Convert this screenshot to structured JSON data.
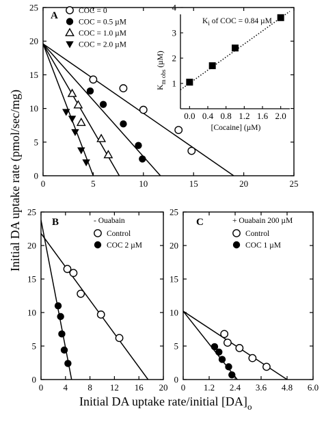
{
  "figure": {
    "ylabel": "Initial DA uptake rate (pmol/sec/mg)",
    "xlabel_main": "Initial DA uptake rate/initial [DA]",
    "xlabel_sub": "o"
  },
  "chart_data": [
    {
      "id": "A",
      "type": "scatter",
      "panel_label": "A",
      "xlim": [
        0,
        25
      ],
      "ylim": [
        0,
        25
      ],
      "xticks": [
        0,
        5,
        10,
        15,
        20,
        25
      ],
      "yticks": [
        0,
        5,
        10,
        15,
        20,
        25
      ],
      "series": [
        {
          "name": "COC = 0",
          "marker": "circle-open",
          "points": [
            [
              5.0,
              14.3
            ],
            [
              8.0,
              13.0
            ],
            [
              10.0,
              9.8
            ],
            [
              13.5,
              6.8
            ],
            [
              14.8,
              3.7
            ]
          ],
          "fit": [
            [
              0,
              19.6
            ],
            [
              19.0,
              0
            ]
          ]
        },
        {
          "name": "COC = 0.5 µM",
          "marker": "circle-filled",
          "points": [
            [
              4.7,
              12.6
            ],
            [
              6.0,
              10.6
            ],
            [
              8.0,
              7.7
            ],
            [
              9.5,
              4.5
            ],
            [
              9.9,
              2.5
            ]
          ],
          "fit": [
            [
              0,
              19.6
            ],
            [
              11.7,
              0
            ]
          ]
        },
        {
          "name": "COC = 1.0 µM",
          "marker": "triangle-up-open",
          "points": [
            [
              2.9,
              12.2
            ],
            [
              3.5,
              10.5
            ],
            [
              3.8,
              7.9
            ],
            [
              5.8,
              5.5
            ],
            [
              6.5,
              3.1
            ]
          ],
          "fit": [
            [
              0,
              19.6
            ],
            [
              7.6,
              0
            ]
          ]
        },
        {
          "name": "COC = 2.0 µM",
          "marker": "triangle-down-filled",
          "points": [
            [
              2.3,
              9.5
            ],
            [
              2.9,
              8.5
            ],
            [
              3.2,
              6.5
            ],
            [
              3.8,
              3.8
            ],
            [
              4.3,
              2.0
            ]
          ],
          "fit": [
            [
              0,
              19.6
            ],
            [
              5.0,
              0
            ]
          ]
        }
      ],
      "inset": {
        "type": "scatter",
        "title": "K_i of COC = 0.84 µM",
        "title_main": "K",
        "title_sub": "i",
        "title_rest": " of COC = 0.84 µM",
        "xlabel": "[Cocaine] (µM)",
        "ylabel_main": "K",
        "ylabel_sub": "m obs",
        "ylabel_rest": " (µM)",
        "xlim": [
          -0.2,
          2.2
        ],
        "ylim": [
          0,
          4
        ],
        "xticks": [
          "0.0",
          "0.4",
          "0.8",
          "1.2",
          "1.6",
          "2.0"
        ],
        "yticks": [
          "1",
          "2",
          "3",
          "4"
        ],
        "points": [
          [
            0.0,
            1.05
          ],
          [
            0.5,
            1.7
          ],
          [
            1.0,
            2.4
          ],
          [
            2.0,
            3.6
          ]
        ],
        "fit": [
          [
            -0.2,
            0.75
          ],
          [
            2.2,
            3.85
          ]
        ]
      }
    },
    {
      "id": "B",
      "type": "scatter",
      "panel_label": "B",
      "title": "- Ouabain",
      "xlim": [
        0,
        20
      ],
      "ylim": [
        0,
        25
      ],
      "xticks": [
        "0",
        "4",
        "8",
        "12",
        "16",
        "20"
      ],
      "yticks": [
        "0",
        "5",
        "10",
        "15",
        "20",
        "25"
      ],
      "series": [
        {
          "name": "Control",
          "marker": "circle-open",
          "points": [
            [
              4.3,
              16.5
            ],
            [
              5.3,
              15.9
            ],
            [
              6.5,
              12.8
            ],
            [
              9.8,
              9.7
            ],
            [
              12.8,
              6.2
            ]
          ],
          "fit": [
            [
              0,
              21.8
            ],
            [
              17.5,
              0
            ]
          ]
        },
        {
          "name": "COC 2 µM",
          "marker": "circle-filled",
          "points": [
            [
              2.8,
              11.0
            ],
            [
              3.2,
              9.4
            ],
            [
              3.4,
              6.8
            ],
            [
              3.8,
              4.4
            ],
            [
              4.4,
              2.4
            ]
          ],
          "fit": [
            [
              0,
              23.8
            ],
            [
              5.0,
              0
            ]
          ]
        }
      ]
    },
    {
      "id": "C",
      "type": "scatter",
      "panel_label": "C",
      "title": "+ Ouabain 200 µM",
      "xlim": [
        0,
        6
      ],
      "ylim": [
        0,
        25
      ],
      "xticks": [
        "0",
        "1.2",
        "2.4",
        "3.6",
        "4.8",
        "6.0"
      ],
      "yticks": [
        "0",
        "5",
        "10",
        "15",
        "20",
        "25"
      ],
      "series": [
        {
          "name": "Control",
          "marker": "circle-open",
          "points": [
            [
              1.9,
              6.8
            ],
            [
              2.05,
              5.5
            ],
            [
              2.6,
              4.7
            ],
            [
              3.2,
              3.2
            ],
            [
              3.85,
              1.9
            ]
          ],
          "fit": [
            [
              0,
              10.2
            ],
            [
              4.8,
              0
            ]
          ]
        },
        {
          "name": "COC 1 µM",
          "marker": "circle-filled",
          "points": [
            [
              1.45,
              4.9
            ],
            [
              1.65,
              4.1
            ],
            [
              1.8,
              3.0
            ],
            [
              2.1,
              1.9
            ],
            [
              2.25,
              0.7
            ]
          ],
          "fit": [
            [
              0,
              10.2
            ],
            [
              2.5,
              0
            ]
          ]
        }
      ]
    }
  ]
}
